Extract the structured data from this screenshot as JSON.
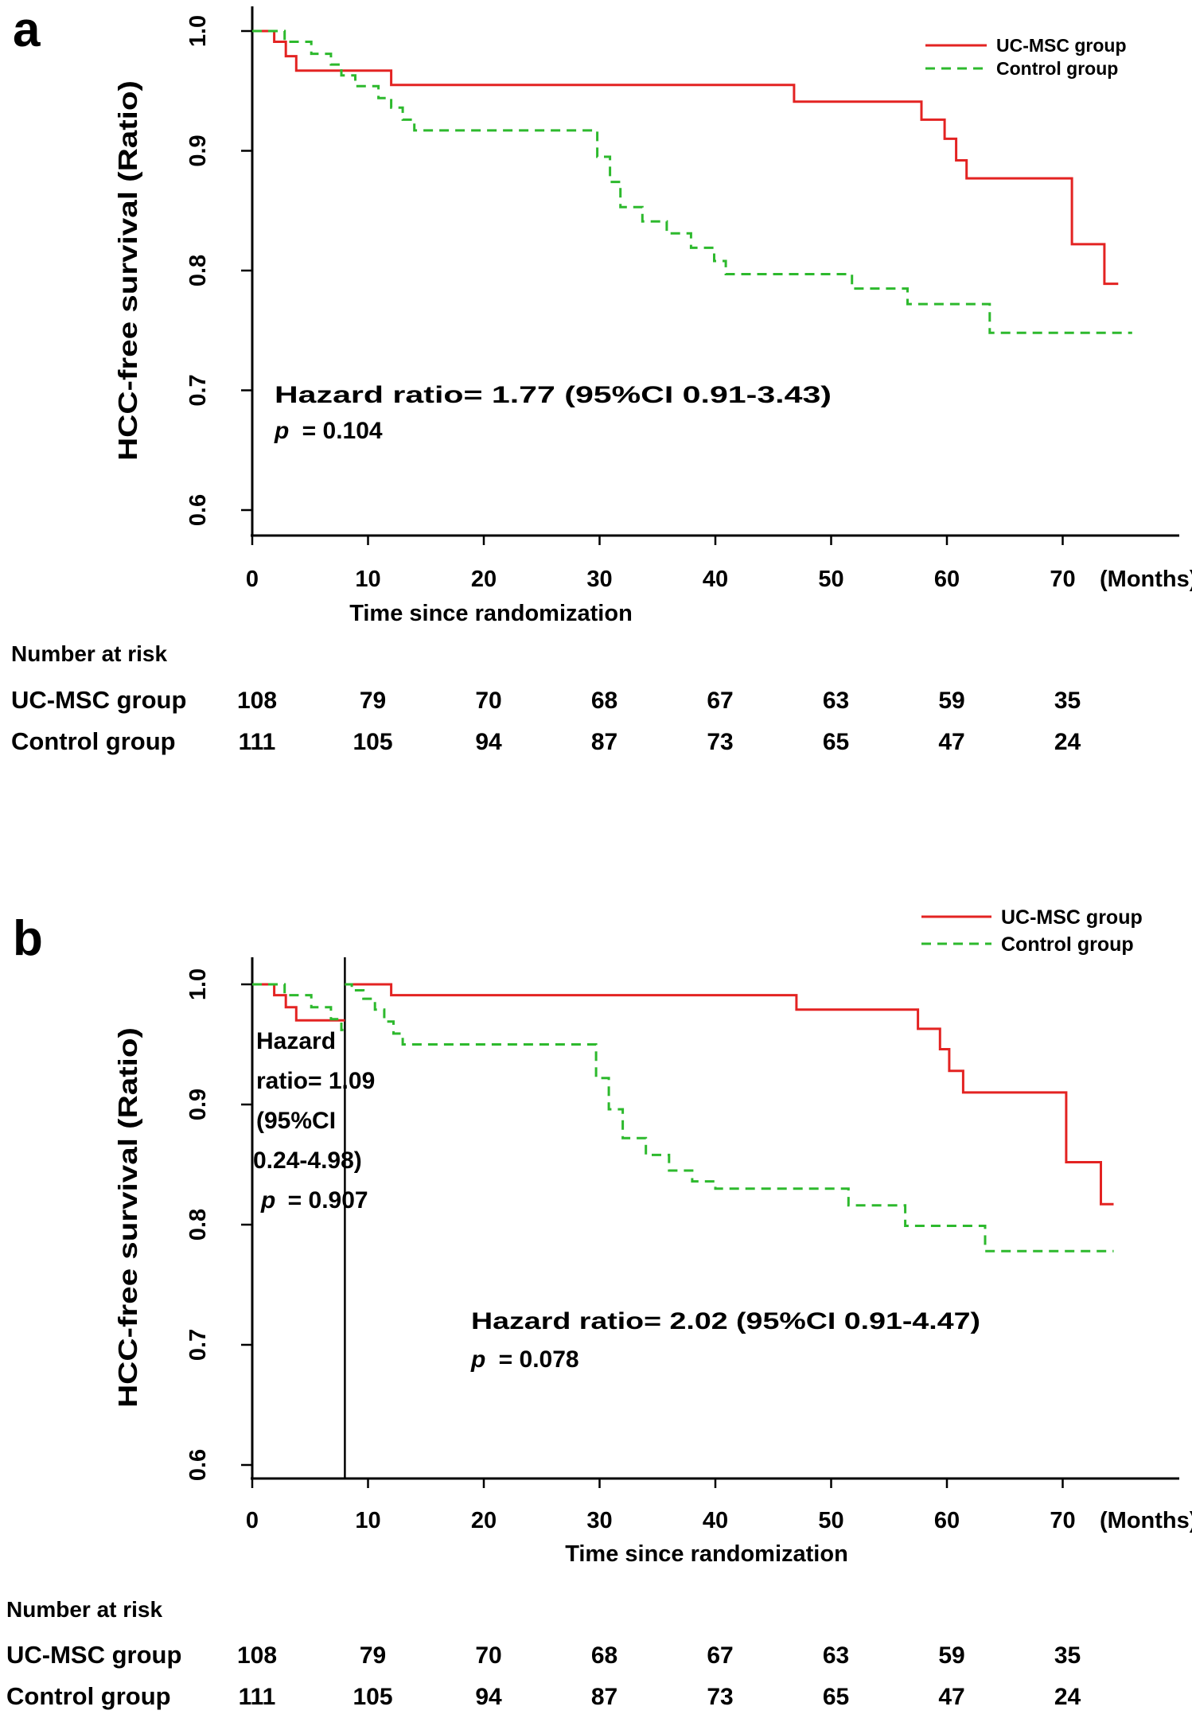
{
  "figure_colors": {
    "ucmsc": "#e32322",
    "control": "#2db92d",
    "axis": "#000000",
    "background": "#ffffff"
  },
  "chart_data": [
    {
      "id": "a",
      "type": "line",
      "subtype": "kaplan-meier-step",
      "panel_label": "a",
      "xlabel": "Time since randomization",
      "ylabel": "HCC-free survival (Ratio)",
      "x_unit_suffix": "(Months)",
      "x_ticks": [
        0,
        10,
        20,
        30,
        40,
        50,
        60,
        70
      ],
      "y_ticks": [
        1.0,
        0.9,
        0.8,
        0.7,
        0.6
      ],
      "xlim": [
        0,
        78
      ],
      "ylim": [
        0.58,
        1.0
      ],
      "grid": false,
      "legend_position": "top-right",
      "legend": [
        {
          "label": "UC-MSC group",
          "color": "#e32322",
          "dash": false
        },
        {
          "label": "Control group",
          "color": "#2db92d",
          "dash": true
        }
      ],
      "annotations": [
        {
          "text_lines": [
            "Hazard ratio= 1.77 (95%CI 0.91-3.43)"
          ],
          "p_italic": "p",
          "p_rest": "= 0.104"
        }
      ],
      "series": [
        {
          "name": "UC-MSC group",
          "color": "#e32322",
          "dash": false,
          "points": [
            [
              0,
              1.0
            ],
            [
              1.9,
              1.0
            ],
            [
              1.9,
              0.991
            ],
            [
              2.9,
              0.991
            ],
            [
              2.9,
              0.979
            ],
            [
              3.8,
              0.979
            ],
            [
              3.8,
              0.967
            ],
            [
              12,
              0.967
            ],
            [
              12,
              0.955
            ],
            [
              46.8,
              0.955
            ],
            [
              46.8,
              0.941
            ],
            [
              57.8,
              0.941
            ],
            [
              57.8,
              0.926
            ],
            [
              59.8,
              0.926
            ],
            [
              59.8,
              0.91
            ],
            [
              60.8,
              0.91
            ],
            [
              60.8,
              0.892
            ],
            [
              61.7,
              0.892
            ],
            [
              61.7,
              0.877
            ],
            [
              70.8,
              0.877
            ],
            [
              70.8,
              0.822
            ],
            [
              73.6,
              0.822
            ],
            [
              73.6,
              0.789
            ],
            [
              74.8,
              0.789
            ]
          ]
        },
        {
          "name": "Control group",
          "color": "#2db92d",
          "dash": true,
          "points": [
            [
              0,
              1.0
            ],
            [
              2.8,
              1.0
            ],
            [
              2.8,
              0.991
            ],
            [
              5.1,
              0.991
            ],
            [
              5.1,
              0.981
            ],
            [
              6.8,
              0.981
            ],
            [
              6.8,
              0.972
            ],
            [
              7.7,
              0.972
            ],
            [
              7.7,
              0.963
            ],
            [
              8.9,
              0.963
            ],
            [
              8.9,
              0.954
            ],
            [
              10.9,
              0.954
            ],
            [
              10.9,
              0.944
            ],
            [
              12,
              0.944
            ],
            [
              12,
              0.936
            ],
            [
              13,
              0.936
            ],
            [
              13,
              0.926
            ],
            [
              14,
              0.926
            ],
            [
              14,
              0.917
            ],
            [
              29.8,
              0.917
            ],
            [
              29.8,
              0.895
            ],
            [
              30.9,
              0.895
            ],
            [
              30.9,
              0.874
            ],
            [
              31.8,
              0.874
            ],
            [
              31.8,
              0.853
            ],
            [
              33.7,
              0.853
            ],
            [
              33.7,
              0.841
            ],
            [
              35.8,
              0.841
            ],
            [
              35.8,
              0.831
            ],
            [
              37.9,
              0.831
            ],
            [
              37.9,
              0.819
            ],
            [
              39.9,
              0.819
            ],
            [
              39.9,
              0.808
            ],
            [
              40.9,
              0.808
            ],
            [
              40.9,
              0.797
            ],
            [
              51.8,
              0.797
            ],
            [
              51.8,
              0.785
            ],
            [
              56.6,
              0.785
            ],
            [
              56.6,
              0.772
            ],
            [
              63.7,
              0.772
            ],
            [
              63.7,
              0.748
            ],
            [
              76,
              0.748
            ]
          ]
        }
      ],
      "risk_table": {
        "title": "Number at risk",
        "time_points": [
          0,
          10,
          20,
          30,
          40,
          50,
          60,
          70
        ],
        "rows": [
          {
            "label": "UC-MSC group",
            "values": [
              108,
              79,
              70,
              68,
              67,
              63,
              59,
              35
            ]
          },
          {
            "label": "Control group",
            "values": [
              111,
              105,
              94,
              87,
              73,
              65,
              47,
              24
            ]
          }
        ]
      }
    },
    {
      "id": "b",
      "type": "line",
      "subtype": "kaplan-meier-step-landmark",
      "panel_label": "b",
      "xlabel": "Time since randomization",
      "ylabel": "HCC-free survival (Ratio)",
      "x_unit_suffix": "(Months)",
      "x_ticks": [
        0,
        10,
        20,
        30,
        40,
        50,
        60,
        70
      ],
      "y_ticks": [
        1.0,
        0.9,
        0.8,
        0.7,
        0.6
      ],
      "xlim": [
        0,
        78
      ],
      "ylim": [
        0.58,
        1.0
      ],
      "grid": false,
      "legend_position": "top-right",
      "landmark_line": {
        "x_month": 8
      },
      "legend": [
        {
          "label": "UC-MSC group",
          "color": "#e32322",
          "dash": false
        },
        {
          "label": "Control group",
          "color": "#2db92d",
          "dash": true
        }
      ],
      "annotations": [
        {
          "text_lines": [
            "Hazard",
            "ratio= 1.09",
            "(95%CI",
            "0.24-4.98)"
          ],
          "p_italic": "p",
          "p_rest": "= 0.907"
        },
        {
          "text_lines": [
            "Hazard ratio= 2.02 (95%CI 0.91-4.47)"
          ],
          "p_italic": "p",
          "p_rest": "= 0.078"
        }
      ],
      "series": [
        {
          "name": "UC-MSC group",
          "segment": "pre-landmark",
          "color": "#e32322",
          "dash": false,
          "points": [
            [
              0,
              1.0
            ],
            [
              1.9,
              1.0
            ],
            [
              1.9,
              0.991
            ],
            [
              2.9,
              0.991
            ],
            [
              2.9,
              0.981
            ],
            [
              3.8,
              0.981
            ],
            [
              3.8,
              0.97
            ],
            [
              8,
              0.97
            ]
          ]
        },
        {
          "name": "Control group",
          "segment": "pre-landmark",
          "color": "#2db92d",
          "dash": true,
          "points": [
            [
              0,
              1.0
            ],
            [
              2.8,
              1.0
            ],
            [
              2.8,
              0.991
            ],
            [
              5.1,
              0.991
            ],
            [
              5.1,
              0.981
            ],
            [
              6.8,
              0.981
            ],
            [
              6.8,
              0.971
            ],
            [
              7.7,
              0.971
            ],
            [
              7.7,
              0.962
            ],
            [
              8,
              0.962
            ]
          ]
        },
        {
          "name": "UC-MSC group",
          "segment": "post-landmark",
          "color": "#e32322",
          "dash": false,
          "points": [
            [
              8,
              1.0
            ],
            [
              12,
              1.0
            ],
            [
              12,
              0.991
            ],
            [
              47,
              0.991
            ],
            [
              47,
              0.979
            ],
            [
              57.5,
              0.979
            ],
            [
              57.5,
              0.963
            ],
            [
              59.4,
              0.963
            ],
            [
              59.4,
              0.946
            ],
            [
              60.2,
              0.946
            ],
            [
              60.2,
              0.928
            ],
            [
              61.4,
              0.928
            ],
            [
              61.4,
              0.91
            ],
            [
              70.3,
              0.91
            ],
            [
              70.3,
              0.852
            ],
            [
              73.3,
              0.852
            ],
            [
              73.3,
              0.817
            ],
            [
              74.4,
              0.817
            ]
          ]
        },
        {
          "name": "Control group",
          "segment": "post-landmark",
          "color": "#2db92d",
          "dash": true,
          "points": [
            [
              8,
              1.0
            ],
            [
              8.6,
              1.0
            ],
            [
              8.6,
              0.995
            ],
            [
              9.6,
              0.995
            ],
            [
              9.6,
              0.988
            ],
            [
              10.6,
              0.988
            ],
            [
              10.6,
              0.979
            ],
            [
              11.4,
              0.979
            ],
            [
              11.4,
              0.969
            ],
            [
              12.2,
              0.969
            ],
            [
              12.2,
              0.959
            ],
            [
              13,
              0.959
            ],
            [
              13,
              0.95
            ],
            [
              29.7,
              0.95
            ],
            [
              29.7,
              0.922
            ],
            [
              30.8,
              0.922
            ],
            [
              30.8,
              0.896
            ],
            [
              32,
              0.896
            ],
            [
              32,
              0.872
            ],
            [
              34,
              0.872
            ],
            [
              34,
              0.858
            ],
            [
              36,
              0.858
            ],
            [
              36,
              0.845
            ],
            [
              38,
              0.845
            ],
            [
              38,
              0.836
            ],
            [
              40,
              0.836
            ],
            [
              40,
              0.83
            ],
            [
              51.5,
              0.83
            ],
            [
              51.5,
              0.816
            ],
            [
              56.4,
              0.816
            ],
            [
              56.4,
              0.799
            ],
            [
              63.3,
              0.799
            ],
            [
              63.3,
              0.778
            ],
            [
              74.4,
              0.778
            ]
          ]
        }
      ],
      "risk_table": {
        "title": "Number at risk",
        "time_points": [
          0,
          10,
          20,
          30,
          40,
          50,
          60,
          70
        ],
        "rows": [
          {
            "label": "UC-MSC group",
            "values": [
              108,
              79,
              70,
              68,
              67,
              63,
              59,
              35
            ]
          },
          {
            "label": "Control group",
            "values": [
              111,
              105,
              94,
              87,
              73,
              65,
              47,
              24
            ]
          }
        ]
      }
    }
  ]
}
